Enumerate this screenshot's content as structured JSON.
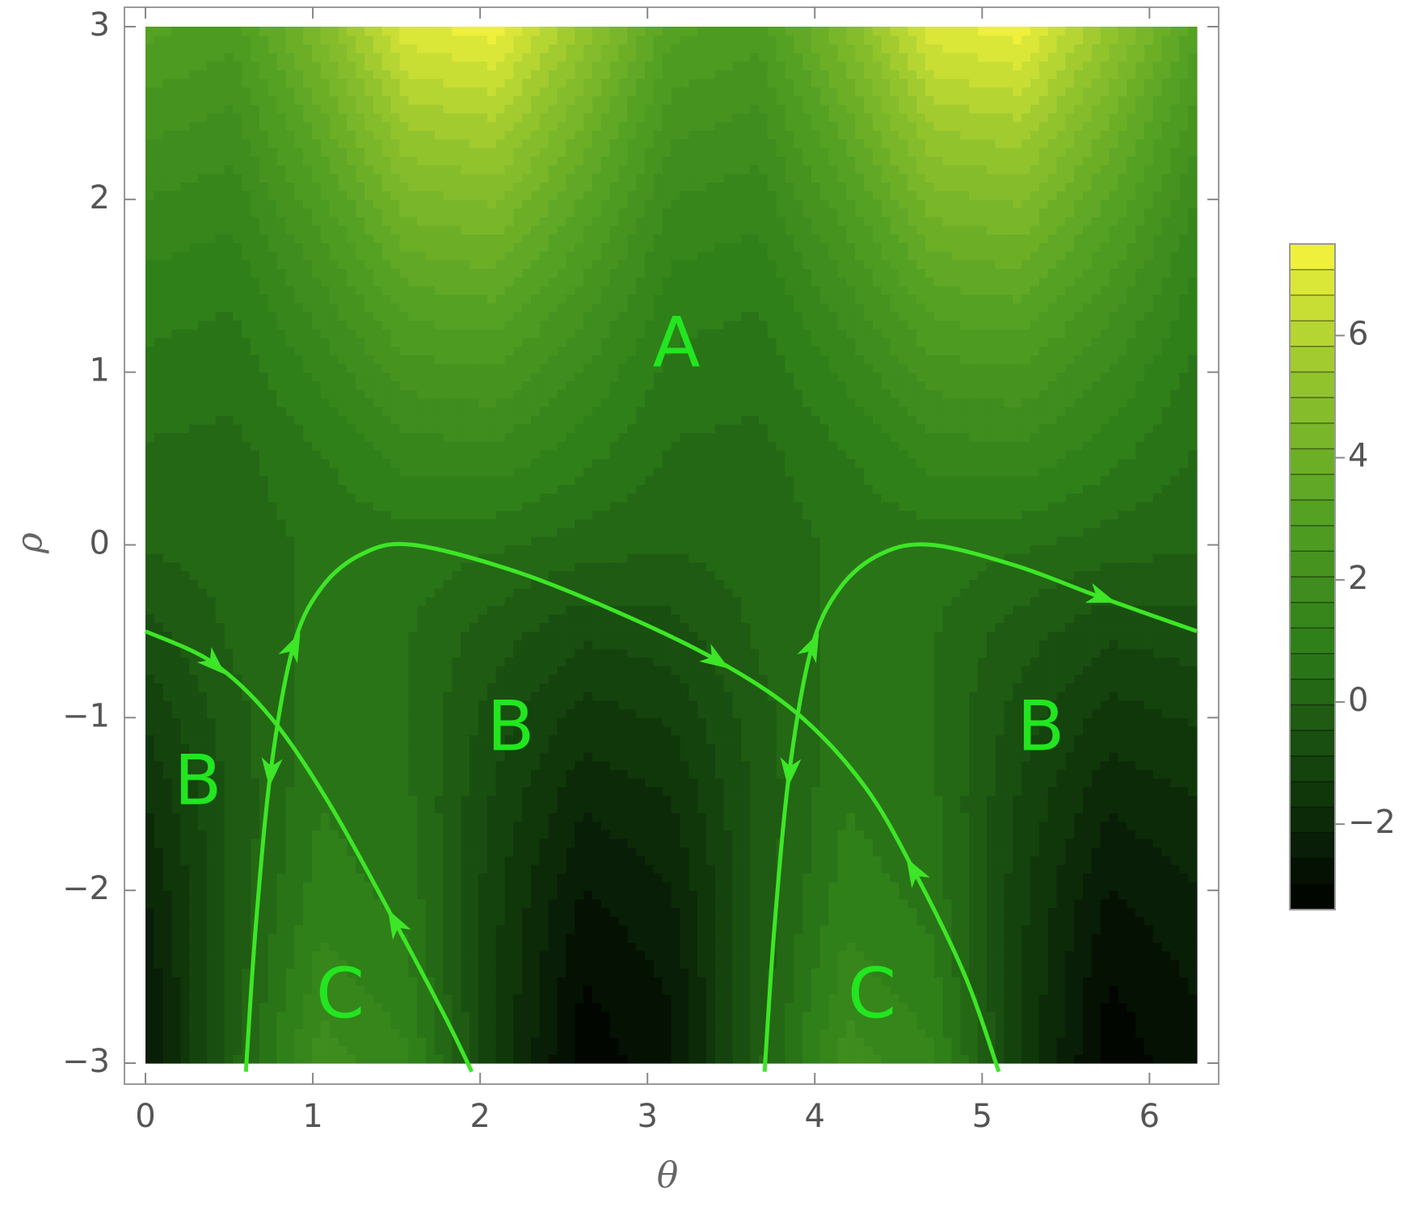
{
  "chart_data": {
    "type": "contour",
    "x_label": "θ",
    "y_label": "ρ",
    "x": [
      0,
      0.5236,
      1.0472,
      1.5708,
      2.0944,
      2.618,
      3.1416,
      3.6652,
      4.1888,
      4.7124,
      5.236,
      5.7596,
      6.2832
    ],
    "y": [
      -3,
      -2.5,
      -2,
      -1.5,
      -1,
      -0.5,
      0,
      0.5,
      1,
      1.5,
      2,
      2.5,
      3
    ],
    "z": [
      [
        -2.69,
        -0.12,
        1.88,
        1.29,
        -1.28,
        -3.28,
        -2.69,
        -0.12,
        1.88,
        1.29,
        -1.28,
        -3.28,
        -2.69
      ],
      [
        -2.49,
        -0.29,
        1.4,
        0.91,
        -1.29,
        -2.98,
        -2.49,
        -0.29,
        1.4,
        0.91,
        -1.29,
        -2.98,
        -2.49
      ],
      [
        -2.18,
        -0.37,
        1.03,
        0.62,
        -1.19,
        -2.59,
        -2.18,
        -0.37,
        1.03,
        0.62,
        -1.19,
        -2.59,
        -2.18
      ],
      [
        -1.77,
        -0.34,
        0.77,
        0.45,
        -0.98,
        -2.09,
        -1.77,
        -0.34,
        0.77,
        0.45,
        -0.98,
        -2.09,
        -1.77
      ],
      [
        -1.25,
        -0.2,
        0.61,
        0.37,
        -0.68,
        -1.49,
        -1.25,
        -0.2,
        0.61,
        0.37,
        -0.68,
        -1.49,
        -1.25
      ],
      [
        -0.64,
        0.03,
        0.55,
        0.4,
        -0.27,
        -0.79,
        -0.64,
        0.03,
        0.55,
        0.4,
        -0.27,
        -0.79,
        -0.64
      ],
      [
        0.0,
        0.16,
        0.46,
        0.6,
        0.44,
        0.14,
        0.0,
        0.16,
        0.46,
        0.6,
        0.44,
        0.14,
        0.0
      ],
      [
        0.3,
        0.21,
        0.74,
        1.36,
        1.45,
        0.92,
        0.3,
        0.21,
        0.74,
        1.36,
        1.45,
        0.92,
        0.3
      ],
      [
        0.65,
        0.51,
        1.32,
        2.27,
        2.41,
        1.6,
        0.65,
        0.51,
        1.32,
        2.27,
        2.41,
        1.6,
        0.65
      ],
      [
        1.08,
        0.89,
        2.0,
        3.3,
        3.49,
        2.38,
        1.08,
        0.89,
        2.0,
        3.3,
        3.49,
        2.38,
        1.08
      ],
      [
        1.63,
        1.39,
        2.78,
        4.41,
        4.65,
        3.26,
        1.63,
        1.39,
        2.78,
        4.41,
        4.65,
        3.26,
        1.63
      ],
      [
        2.28,
        1.99,
        3.67,
        5.64,
        5.93,
        4.25,
        2.28,
        1.99,
        3.67,
        5.64,
        5.93,
        4.25,
        2.28
      ],
      [
        3.02,
        2.68,
        4.66,
        6.98,
        7.31,
        5.34,
        3.02,
        2.68,
        4.66,
        6.98,
        7.31,
        5.34,
        3.02
      ]
    ],
    "xlim": [
      0,
      6.2832
    ],
    "ylim": [
      -3,
      3
    ],
    "xticks": [
      0,
      1,
      2,
      3,
      4,
      5,
      6
    ],
    "yticks": [
      {
        "value": -3,
        "label": "−3"
      },
      {
        "value": -2,
        "label": "−2"
      },
      {
        "value": -1,
        "label": "−1"
      },
      0,
      1,
      2,
      3
    ],
    "zlim": [
      -3.4,
      7.5
    ],
    "zticks": [
      {
        "value": -2,
        "label": "−2"
      },
      0,
      2,
      4,
      6
    ],
    "levels": 26,
    "colormap": [
      "#000000",
      "#123f0c",
      "#2f7f1a",
      "#55a223",
      "#95c52e",
      "#f7f53c"
    ],
    "curves": [
      {
        "color": "#3de626",
        "x": [
          0,
          0.4,
          0.75,
          1.1,
          1.5,
          1.8,
          1.95
        ],
        "y": [
          -0.5,
          -0.68,
          -1.0,
          -1.5,
          -2.2,
          -2.75,
          -3.05
        ]
      },
      {
        "color": "#3de626",
        "x": [
          0.6,
          0.66,
          0.75,
          0.88,
          1.05,
          1.3,
          1.6,
          2.2,
          2.8,
          3.4,
          3.9,
          4.3,
          4.6,
          4.9,
          5.1
        ],
        "y": [
          -3.05,
          -2.2,
          -1.3,
          -0.6,
          -0.25,
          -0.05,
          0,
          -0.15,
          -0.38,
          -0.66,
          -0.98,
          -1.4,
          -1.9,
          -2.5,
          -3.05
        ]
      },
      {
        "color": "#3de626",
        "x": [
          3.7,
          3.76,
          3.85,
          3.98,
          4.15,
          4.4,
          4.7,
          5.2,
          5.7,
          6.2832
        ],
        "y": [
          -3.05,
          -2.2,
          -1.3,
          -0.6,
          -0.25,
          -0.05,
          0,
          -0.12,
          -0.3,
          -0.5
        ]
      }
    ],
    "annotations": [
      "A",
      "B",
      "B",
      "B",
      "C",
      "C"
    ],
    "annotation_color": "#22e61f"
  }
}
